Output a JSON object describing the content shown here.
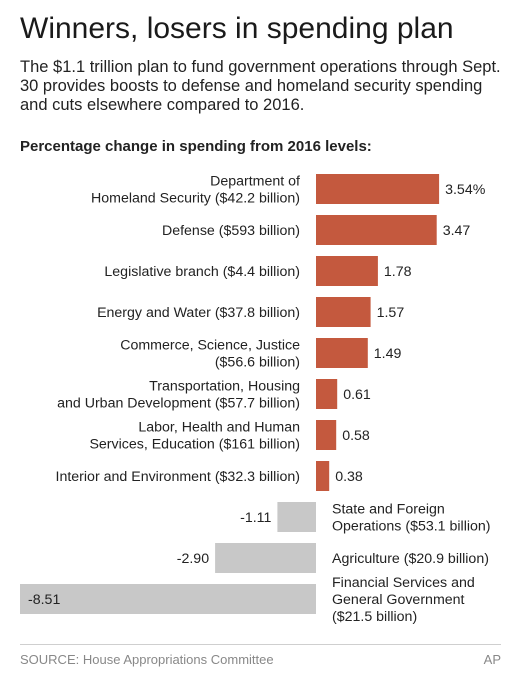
{
  "header": {
    "title": "Winners, losers in spending plan",
    "subtitle": "The $1.1 trillion plan to fund government operations through Sept. 30 provides boosts to defense and homeland security spending and cuts elsewhere compared to 2016.",
    "chart_heading": "Percentage change in spending from 2016 levels:"
  },
  "footer": {
    "source": "SOURCE: House Appropriations Committee",
    "credit": "AP"
  },
  "colors": {
    "positive": "#c4593e",
    "negative": "#c8c8c8"
  },
  "chart_data": {
    "type": "bar",
    "orientation": "horizontal",
    "title": "Percentage change in spending from 2016 levels:",
    "categories": [
      [
        "Department of",
        "Homeland Security ($42.2 billion)"
      ],
      [
        "Defense ($593 billion)"
      ],
      [
        "Legislative branch ($4.4 billion)"
      ],
      [
        "Energy and Water ($37.8 billion)"
      ],
      [
        "Commerce, Science, Justice",
        "($56.6 billion)"
      ],
      [
        "Transportation, Housing",
        "and Urban Development ($57.7 billion)"
      ],
      [
        "Labor, Health and Human",
        "Services, Education ($161 billion)"
      ],
      [
        "Interior and Environment ($32.3 billion)"
      ],
      [
        "State and Foreign",
        "Operations ($53.1 billion)"
      ],
      [
        "Agriculture ($20.9 billion)"
      ],
      [
        "Financial Services and",
        "General Government",
        "($21.5 billion)"
      ]
    ],
    "values": [
      3.54,
      3.47,
      1.78,
      1.57,
      1.49,
      0.61,
      0.58,
      0.38,
      -1.11,
      -2.9,
      -8.51
    ],
    "value_labels": [
      "3.54%",
      "3.47",
      "1.78",
      "1.57",
      "1.49",
      "0.61",
      "0.58",
      "0.38",
      "-1.11",
      "-2.90",
      "-8.51"
    ],
    "xlabel": "",
    "ylabel": "",
    "xlim": [
      -8.51,
      3.54
    ]
  }
}
